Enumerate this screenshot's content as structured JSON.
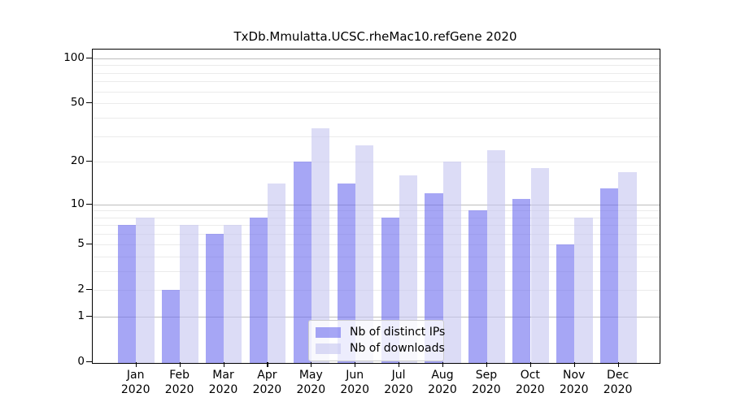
{
  "chart_data": {
    "type": "bar",
    "title": "TxDb.Mmulatta.UCSC.rheMac10.refGene 2020",
    "categories": [
      "Jan",
      "Feb",
      "Mar",
      "Apr",
      "May",
      "Jun",
      "Jul",
      "Aug",
      "Sep",
      "Oct",
      "Nov",
      "Dec"
    ],
    "year": "2020",
    "series": [
      {
        "name": "Nb of distinct IPs",
        "color": "rgba(107,107,238,0.6)",
        "values": [
          7,
          2,
          6,
          8,
          20,
          14,
          8,
          12,
          9,
          11,
          5,
          13
        ]
      },
      {
        "name": "Nb of downloads",
        "color": "rgba(196,196,240,0.6)",
        "values": [
          8,
          7,
          7,
          14,
          34,
          26,
          16,
          20,
          24,
          18,
          8,
          17
        ]
      }
    ],
    "xlabel": "",
    "ylabel": "",
    "y_axis": {
      "scale": "log1p",
      "tick_values": [
        0,
        1,
        2,
        5,
        10,
        20,
        50,
        100
      ],
      "tick_labels": [
        "0",
        "1",
        "2",
        "5",
        "10",
        "20",
        "50",
        "100"
      ],
      "major_grid_values": [
        1,
        10,
        100
      ],
      "minor_grid_values": [
        2,
        3,
        4,
        5,
        6,
        7,
        8,
        9,
        20,
        30,
        40,
        50,
        60,
        70,
        80,
        90
      ],
      "ylim": [
        0,
        116
      ]
    },
    "grid": true,
    "legend_position": "lower center"
  }
}
